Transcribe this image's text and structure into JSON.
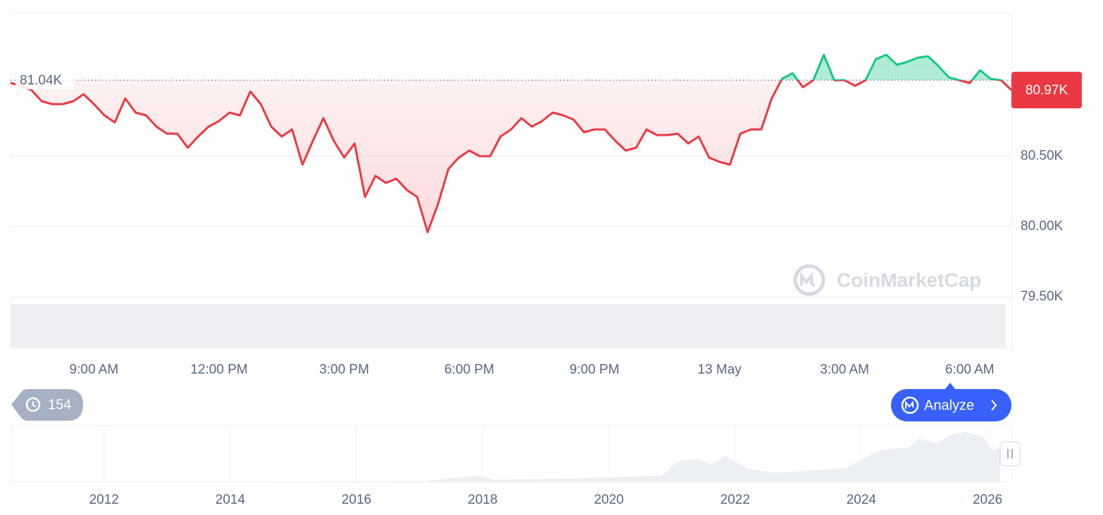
{
  "chart_data": {
    "type": "line",
    "x": [
      0,
      0.25,
      0.5,
      0.75,
      1,
      1.25,
      1.5,
      1.75,
      2,
      2.25,
      2.5,
      2.75,
      3,
      3.25,
      3.5,
      3.75,
      4,
      4.25,
      4.5,
      4.75,
      5,
      5.25,
      5.5,
      5.75,
      6,
      6.25,
      6.5,
      6.75,
      7,
      7.25,
      7.5,
      7.75,
      8,
      8.25,
      8.5,
      8.75,
      9,
      9.25,
      9.5,
      9.75,
      10,
      10.25,
      10.5,
      10.75,
      11,
      11.25,
      11.5,
      11.75,
      12,
      12.25,
      12.5,
      12.75,
      13,
      13.25,
      13.5,
      13.75,
      14,
      14.25,
      14.5,
      14.75,
      15,
      15.25,
      15.5,
      15.75,
      16,
      16.25,
      16.5,
      16.75,
      17,
      17.25,
      17.5,
      17.75,
      18,
      18.25,
      18.5,
      18.75,
      19,
      19.25,
      19.5,
      19.75,
      20,
      20.25,
      20.5,
      20.75,
      21,
      21.25,
      21.5,
      21.75,
      22,
      22.25,
      22.5,
      22.75,
      23,
      23.25,
      23.5,
      23.75,
      24
    ],
    "series": [
      {
        "values": [
          81.02,
          81.0,
          80.97,
          80.89,
          80.87,
          80.87,
          80.89,
          80.94,
          80.87,
          80.79,
          80.74,
          80.91,
          80.81,
          80.79,
          80.71,
          80.66,
          80.66,
          80.56,
          80.64,
          80.71,
          80.75,
          80.81,
          80.79,
          80.96,
          80.87,
          80.71,
          80.64,
          80.69,
          80.44,
          80.61,
          80.77,
          80.61,
          80.49,
          80.59,
          80.21,
          80.36,
          80.31,
          80.34,
          80.26,
          80.21,
          79.96,
          80.16,
          80.41,
          80.49,
          80.54,
          80.5,
          80.5,
          80.64,
          80.69,
          80.77,
          80.71,
          80.75,
          80.81,
          80.79,
          80.76,
          80.67,
          80.69,
          80.69,
          80.61,
          80.54,
          80.56,
          80.69,
          80.65,
          80.65,
          80.66,
          80.59,
          80.64,
          80.49,
          80.46,
          80.44,
          80.66,
          80.69,
          80.69,
          80.91,
          81.05,
          81.09,
          80.99,
          81.04,
          81.22,
          81.04,
          81.04,
          81.0,
          81.04,
          81.19,
          81.22,
          81.15,
          81.17,
          81.2,
          81.21,
          81.14,
          81.06,
          81.04,
          81.02,
          81.11,
          81.05,
          81.04,
          80.97
        ],
        "color_below": "#ea3943",
        "color_above": "#16c784"
      }
    ],
    "baseline": {
      "value": 81.04,
      "label": "81.04K"
    },
    "current": {
      "value": 80.97,
      "label": "80.97K"
    },
    "xlim": [
      0,
      24
    ],
    "xticks": [
      {
        "value": 2,
        "label": "9:00 AM"
      },
      {
        "value": 5,
        "label": "12:00 PM"
      },
      {
        "value": 8,
        "label": "3:00 PM"
      },
      {
        "value": 11,
        "label": "6:00 PM"
      },
      {
        "value": 14,
        "label": "9:00 PM"
      },
      {
        "value": 17,
        "label": "13 May"
      },
      {
        "value": 20,
        "label": "3:00 AM"
      },
      {
        "value": 23,
        "label": "6:00 AM"
      }
    ],
    "ylim": [
      79.5,
      81.52
    ],
    "yticks": [
      {
        "value": 79.5,
        "label": "79.50K"
      },
      {
        "value": 80,
        "label": "80.00K"
      },
      {
        "value": 80.5,
        "label": "80.50K"
      }
    ],
    "grid": true,
    "watermark": "CoinMarketCap"
  },
  "navigator": {
    "xlim": [
      2010.53,
      2026.2
    ],
    "xticks": [
      2012,
      2014,
      2016,
      2018,
      2020,
      2022,
      2024,
      2026
    ]
  },
  "controls": {
    "history_count": "154",
    "analyze": "Analyze"
  }
}
